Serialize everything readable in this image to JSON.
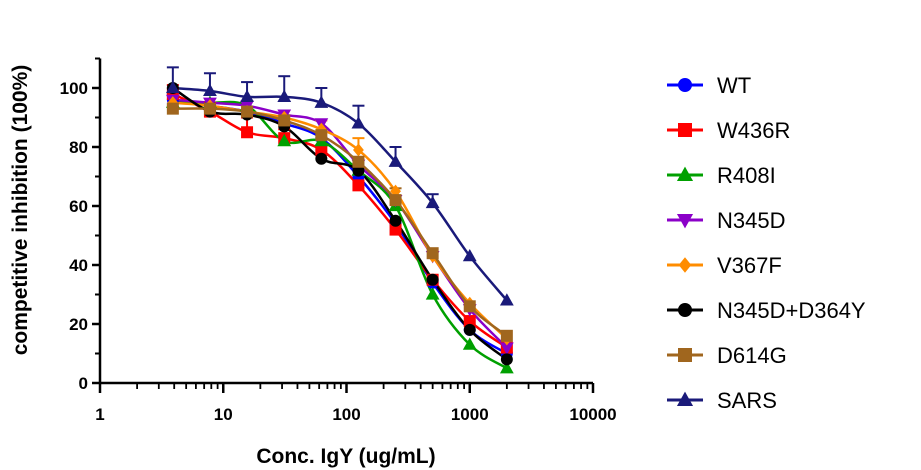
{
  "chart_data": {
    "type": "line",
    "title": "",
    "xlabel": "Conc. IgY (ug/mL)",
    "ylabel": "competitive inhibition (100%)",
    "x_scale": "log",
    "xlim": [
      1,
      10000
    ],
    "ylim": [
      0,
      110
    ],
    "x_ticks": [
      1,
      10,
      100,
      1000,
      10000
    ],
    "x_tick_labels": [
      "1",
      "10",
      "100",
      "1000",
      "10000"
    ],
    "y_ticks": [
      0,
      20,
      40,
      60,
      80,
      100
    ],
    "y_tick_labels": [
      "0",
      "20",
      "40",
      "60",
      "80",
      "100"
    ],
    "legend_position": "right",
    "grid": false,
    "x": [
      3.9,
      7.8,
      15.6,
      31.25,
      62.5,
      125,
      250,
      500,
      1000,
      2000
    ],
    "series": [
      {
        "name": "WT",
        "color": "#0000ff",
        "marker": "circle",
        "values": [
          96,
          94,
          92,
          88,
          83,
          70,
          54,
          34,
          18,
          10
        ],
        "errors": [
          0,
          0,
          0,
          0,
          0,
          0,
          0,
          0,
          0,
          0
        ]
      },
      {
        "name": "W436R",
        "color": "#ff0000",
        "marker": "square",
        "values": [
          98,
          92,
          85,
          83,
          79,
          67,
          52,
          35,
          21,
          12
        ],
        "errors": [
          3,
          3,
          5,
          3,
          0,
          0,
          0,
          0,
          0,
          0
        ]
      },
      {
        "name": "R408I",
        "color": "#00a000",
        "marker": "triangle-up",
        "values": [
          95,
          95,
          94,
          82,
          82,
          72,
          60,
          30,
          13,
          5
        ],
        "errors": [
          0,
          0,
          0,
          0,
          0,
          0,
          0,
          0,
          0,
          0
        ]
      },
      {
        "name": "N345D",
        "color": "#8b00c8",
        "marker": "triangle-down",
        "values": [
          96,
          95,
          94,
          91,
          88,
          74,
          62,
          43,
          25,
          12
        ],
        "errors": [
          0,
          0,
          0,
          0,
          0,
          0,
          0,
          0,
          0,
          0
        ]
      },
      {
        "name": "V367F",
        "color": "#ff8c00",
        "marker": "diamond",
        "values": [
          95,
          94,
          92,
          90,
          86,
          79,
          65,
          43,
          27,
          15
        ],
        "errors": [
          0,
          0,
          0,
          0,
          3,
          4,
          0,
          0,
          0,
          0
        ]
      },
      {
        "name": "N345D+D364Y",
        "color": "#000000",
        "marker": "circle",
        "values": [
          100,
          92,
          91,
          87,
          76,
          72,
          55,
          35,
          18,
          8
        ],
        "errors": [
          0,
          0,
          0,
          0,
          0,
          0,
          0,
          0,
          0,
          0
        ]
      },
      {
        "name": "D614G",
        "color": "#a0661e",
        "marker": "square",
        "values": [
          93,
          93,
          92,
          89,
          84,
          75,
          62,
          44,
          26,
          16
        ],
        "errors": [
          0,
          0,
          0,
          0,
          0,
          0,
          4,
          0,
          0,
          0
        ]
      },
      {
        "name": "SARS",
        "color": "#1a1a7a",
        "marker": "triangle-up",
        "values": [
          100,
          99,
          97,
          97,
          95,
          88,
          75,
          61,
          43,
          28
        ],
        "errors": [
          7,
          6,
          5,
          7,
          5,
          6,
          5,
          3,
          0,
          0
        ]
      }
    ]
  }
}
